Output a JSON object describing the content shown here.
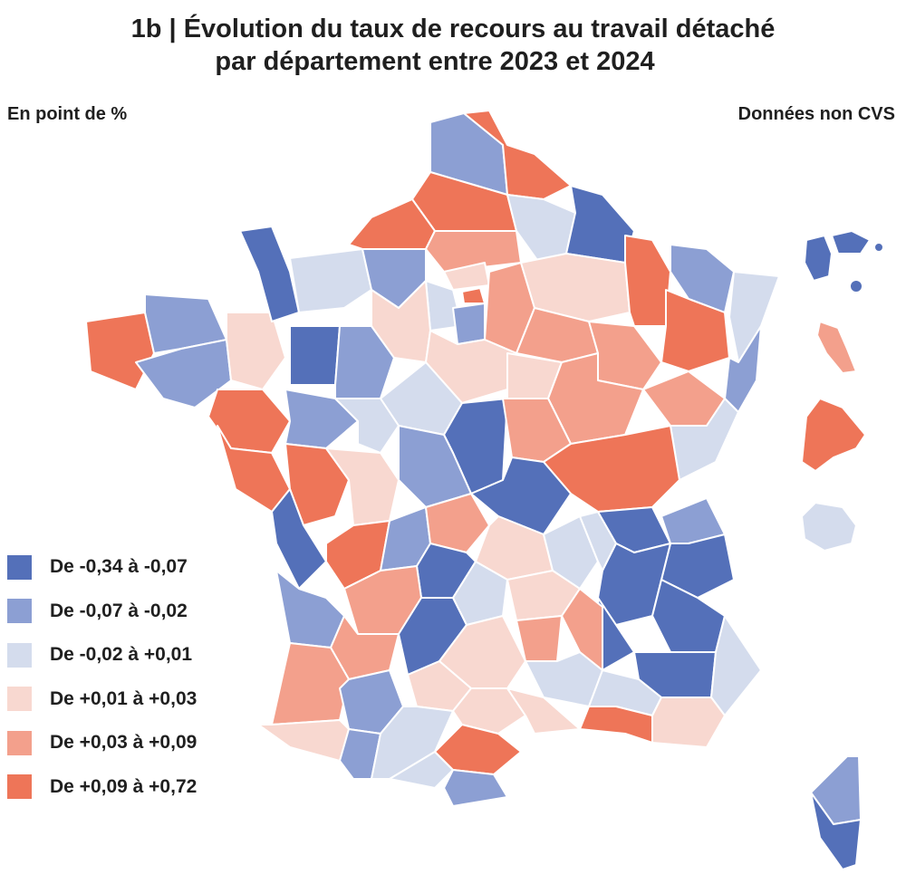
{
  "header": {
    "title_line1": "1b | Évolution du taux de recours au travail détaché",
    "title_line2": "par département entre 2023 et 2024"
  },
  "unit_label": "En point de %",
  "note_label": "Données non CVS",
  "palette": {
    "c1": "#5470b9",
    "c2": "#8c9fd3",
    "c3": "#d4dced",
    "c4": "#f8d8d0",
    "c5": "#f3a08c",
    "c6": "#ee7558"
  },
  "legend": [
    {
      "label": "De -0,34 à -0,07",
      "color": "#5470b9"
    },
    {
      "label": "De -0,07 à -0,02",
      "color": "#8c9fd3"
    },
    {
      "label": "De -0,02 à +0,01",
      "color": "#d4dced"
    },
    {
      "label": "De +0,01 à +0,03",
      "color": "#f8d8d0"
    },
    {
      "label": "De +0,03 à +0,09",
      "color": "#f3a08c"
    },
    {
      "label": "De +0,09 à +0,72",
      "color": "#ee7558"
    }
  ]
}
